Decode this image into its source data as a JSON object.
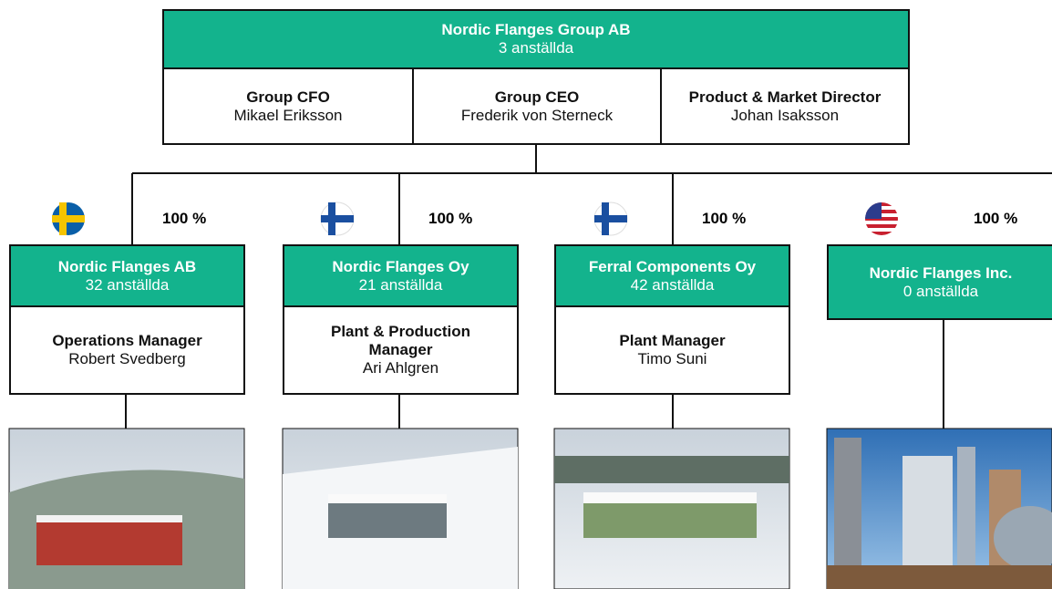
{
  "header": {
    "title": "Nordic Flanges Group AB",
    "subtitle": "3 anställda"
  },
  "executives": [
    {
      "role": "Group CFO",
      "name": "Mikael Eriksson"
    },
    {
      "role": "Group CEO",
      "name": "Frederik von Sterneck"
    },
    {
      "role": "Product & Market Director",
      "name": "Johan Isaksson"
    }
  ],
  "subsidiaries": [
    {
      "ownership": "100 %",
      "name": "Nordic Flanges AB",
      "employees": "32 anställda",
      "manager": {
        "role": "Operations Manager",
        "name": "Robert Svedberg"
      }
    },
    {
      "ownership": "100 %",
      "name": "Nordic Flanges Oy",
      "employees": "21 anställda",
      "manager": {
        "role": "Plant & Production Manager",
        "name": "Ari Ahlgren"
      }
    },
    {
      "ownership": "100 %",
      "name": "Ferral Components Oy",
      "employees": "42 anställda",
      "manager": {
        "role": "Plant Manager",
        "name": "Timo Suni"
      }
    },
    {
      "ownership": "100 %",
      "name": "Nordic Flanges Inc.",
      "employees": "0 anställda"
    }
  ]
}
